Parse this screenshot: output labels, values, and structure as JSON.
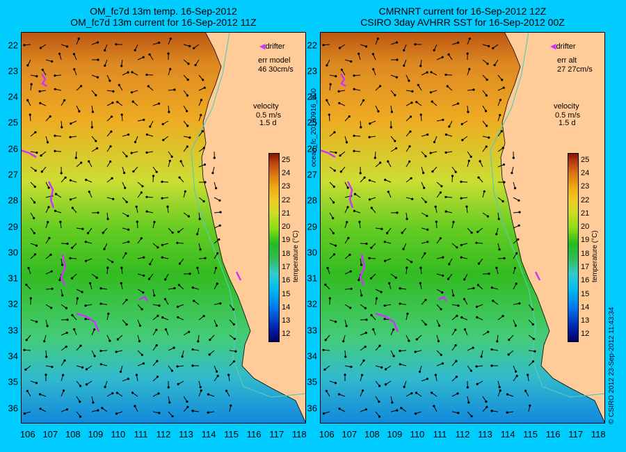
{
  "left_panel": {
    "title_line1": "OM_fc7d 13m temp. 16-Sep-2012",
    "title_line2": "OM_fc7d 13m current for 16-Sep-2012 11Z",
    "drifter_label": "drifter",
    "err_label": "err model",
    "err_value": "46 30cm/s",
    "velocity_label": "velocity",
    "velocity_value": "0.5 m/s",
    "velocity_days": "1.5 d"
  },
  "right_panel": {
    "title_line1": "CMRNRT current for 16-Sep-2012 12Z",
    "title_line2": "CSIRO 3day AVHRR SST for 16-Sep-2012 00Z",
    "drifter_label": "drifter",
    "err_label": "err alt",
    "err_value": "27 27cm/s",
    "velocity_label": "velocity",
    "velocity_value": "0.5 m/s",
    "velocity_days": "1.5 d"
  },
  "colorbar": {
    "label": "temperature (°C)",
    "ticks": [
      "25",
      "24",
      "23",
      "22",
      "21",
      "20",
      "19",
      "18",
      "17",
      "16",
      "15",
      "14",
      "13",
      "12"
    ],
    "min": 11.5,
    "max": 25.5
  },
  "axes": {
    "latitudes": [
      "22",
      "23",
      "24",
      "25",
      "26",
      "27",
      "28",
      "29",
      "30",
      "31",
      "32",
      "33",
      "34",
      "35",
      "36"
    ],
    "longitudes": [
      "106",
      "107",
      "108",
      "109",
      "110",
      "111",
      "112",
      "113",
      "114",
      "115",
      "116",
      "117",
      "118"
    ]
  },
  "side_label_middle": "ocean_fc_20120916_000",
  "side_label_right": "© CSIRO 2012   23-Sep-2012 11:43:34",
  "colors": {
    "background": "#00ccff",
    "land": "#ffcc99",
    "drifter": "#cc33ff",
    "isobath": "#55ccbb"
  }
}
